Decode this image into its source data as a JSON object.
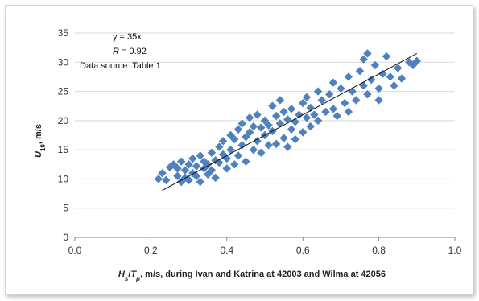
{
  "chart_data": {
    "type": "scatter",
    "xlabel": {
      "H": "H",
      "s_sub": "s",
      "slash": "/",
      "T": "T",
      "p_sub": "p",
      "rest": ", m/s, during Ivan and Katrina at 42003 and Wilma at 42056"
    },
    "ylabel": {
      "U": "U",
      "sub": "10",
      "rest": ", m/s"
    },
    "xlim": [
      0.0,
      1.0
    ],
    "ylim": [
      0,
      35
    ],
    "xticks": [
      "0.0",
      "0.2",
      "0.4",
      "0.6",
      "0.8",
      "1.0"
    ],
    "yticks": [
      "0",
      "5",
      "10",
      "15",
      "20",
      "25",
      "30",
      "35"
    ],
    "grid": "horizontal",
    "marker": "diamond",
    "color": "#4f81bd",
    "annotations": {
      "equation": "y = 35x",
      "r_symbol": "R",
      "r_value": " = 0.92",
      "source": "Data source: Table 1"
    },
    "trendline": {
      "slope": 35,
      "x_range": [
        0.23,
        0.9
      ]
    },
    "points": [
      [
        0.22,
        10.0
      ],
      [
        0.23,
        11.0
      ],
      [
        0.24,
        9.8
      ],
      [
        0.25,
        12.0
      ],
      [
        0.26,
        12.5
      ],
      [
        0.27,
        10.5
      ],
      [
        0.27,
        11.8
      ],
      [
        0.28,
        9.5
      ],
      [
        0.28,
        13.0
      ],
      [
        0.29,
        10.2
      ],
      [
        0.29,
        11.5
      ],
      [
        0.3,
        12.5
      ],
      [
        0.3,
        9.8
      ],
      [
        0.31,
        13.5
      ],
      [
        0.31,
        11.0
      ],
      [
        0.32,
        10.5
      ],
      [
        0.32,
        12.2
      ],
      [
        0.33,
        14.0
      ],
      [
        0.33,
        9.5
      ],
      [
        0.34,
        11.8
      ],
      [
        0.34,
        13.0
      ],
      [
        0.35,
        12.5
      ],
      [
        0.35,
        10.8
      ],
      [
        0.36,
        14.5
      ],
      [
        0.36,
        11.5
      ],
      [
        0.37,
        13.2
      ],
      [
        0.37,
        10.2
      ],
      [
        0.38,
        15.5
      ],
      [
        0.38,
        12.8
      ],
      [
        0.39,
        14.2
      ],
      [
        0.39,
        16.5
      ],
      [
        0.4,
        13.5
      ],
      [
        0.4,
        11.8
      ],
      [
        0.41,
        17.5
      ],
      [
        0.41,
        15.0
      ],
      [
        0.42,
        12.5
      ],
      [
        0.42,
        16.8
      ],
      [
        0.43,
        18.5
      ],
      [
        0.43,
        14.0
      ],
      [
        0.44,
        19.5
      ],
      [
        0.44,
        15.8
      ],
      [
        0.45,
        13.0
      ],
      [
        0.45,
        17.2
      ],
      [
        0.46,
        20.5
      ],
      [
        0.46,
        18.0
      ],
      [
        0.47,
        15.0
      ],
      [
        0.47,
        19.0
      ],
      [
        0.48,
        21.0
      ],
      [
        0.48,
        16.5
      ],
      [
        0.49,
        18.8
      ],
      [
        0.49,
        14.5
      ],
      [
        0.5,
        20.0
      ],
      [
        0.5,
        17.5
      ],
      [
        0.51,
        15.8
      ],
      [
        0.51,
        19.2
      ],
      [
        0.52,
        22.5
      ],
      [
        0.52,
        18.2
      ],
      [
        0.53,
        16.0
      ],
      [
        0.53,
        20.8
      ],
      [
        0.54,
        23.5
      ],
      [
        0.54,
        19.5
      ],
      [
        0.55,
        17.0
      ],
      [
        0.55,
        21.5
      ],
      [
        0.56,
        15.5
      ],
      [
        0.56,
        20.2
      ],
      [
        0.57,
        18.5
      ],
      [
        0.57,
        22.0
      ],
      [
        0.58,
        16.8
      ],
      [
        0.58,
        19.8
      ],
      [
        0.59,
        21.0
      ],
      [
        0.6,
        23.0
      ],
      [
        0.6,
        18.0
      ],
      [
        0.61,
        20.5
      ],
      [
        0.61,
        24.0
      ],
      [
        0.62,
        19.0
      ],
      [
        0.62,
        22.2
      ],
      [
        0.63,
        21.0
      ],
      [
        0.64,
        25.0
      ],
      [
        0.64,
        20.0
      ],
      [
        0.65,
        23.5
      ],
      [
        0.66,
        21.5
      ],
      [
        0.67,
        24.5
      ],
      [
        0.68,
        22.0
      ],
      [
        0.68,
        26.5
      ],
      [
        0.69,
        20.8
      ],
      [
        0.7,
        25.5
      ],
      [
        0.71,
        23.0
      ],
      [
        0.72,
        27.5
      ],
      [
        0.72,
        21.5
      ],
      [
        0.73,
        25.0
      ],
      [
        0.74,
        23.5
      ],
      [
        0.75,
        28.5
      ],
      [
        0.76,
        26.0
      ],
      [
        0.76,
        30.5
      ],
      [
        0.77,
        24.5
      ],
      [
        0.77,
        31.5
      ],
      [
        0.78,
        27.0
      ],
      [
        0.79,
        29.5
      ],
      [
        0.8,
        25.5
      ],
      [
        0.8,
        23.5
      ],
      [
        0.81,
        28.0
      ],
      [
        0.82,
        31.0
      ],
      [
        0.83,
        27.5
      ],
      [
        0.84,
        26.0
      ],
      [
        0.85,
        29.0
      ],
      [
        0.86,
        27.2
      ],
      [
        0.88,
        30.0
      ],
      [
        0.89,
        29.5
      ],
      [
        0.9,
        30.2
      ]
    ]
  }
}
